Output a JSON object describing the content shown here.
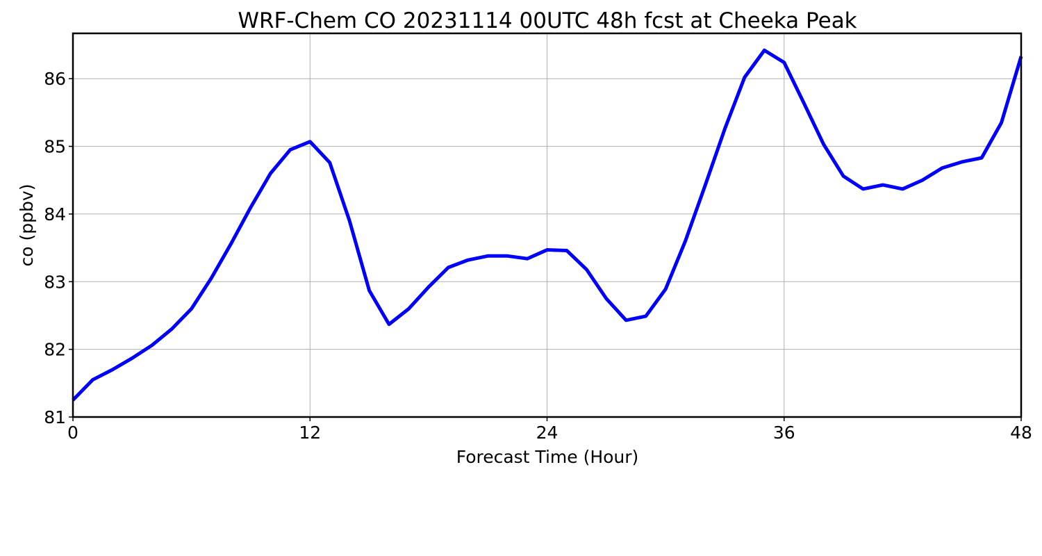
{
  "chart_data": {
    "type": "line",
    "title": "WRF-Chem CO  20231114 00UTC 48h fcst at Cheeka Peak",
    "xlabel": "Forecast Time (Hour)",
    "ylabel": "co  (ppbv)",
    "xlim": [
      0,
      48
    ],
    "ylim": [
      81,
      86.67
    ],
    "xticks": [
      0,
      12,
      24,
      36,
      48
    ],
    "yticks": [
      81,
      82,
      83,
      84,
      85,
      86
    ],
    "grid": true,
    "x": [
      0,
      1,
      2,
      3,
      4,
      5,
      6,
      7,
      8,
      9,
      10,
      11,
      12,
      13,
      14,
      15,
      16,
      17,
      18,
      19,
      20,
      21,
      22,
      23,
      24,
      25,
      26,
      27,
      28,
      29,
      30,
      31,
      32,
      33,
      34,
      35,
      36,
      37,
      38,
      39,
      40,
      41,
      42,
      43,
      44,
      45,
      46,
      47,
      48
    ],
    "series": [
      {
        "color": "#0000ff",
        "values": [
          81.25,
          81.55,
          81.7,
          81.87,
          82.06,
          82.3,
          82.6,
          83.05,
          83.56,
          84.1,
          84.6,
          84.95,
          85.07,
          84.76,
          83.9,
          82.87,
          82.37,
          82.6,
          82.92,
          83.21,
          83.32,
          83.38,
          83.38,
          83.34,
          83.47,
          83.46,
          83.18,
          82.75,
          82.43,
          82.49,
          82.89,
          83.6,
          84.42,
          85.26,
          86.02,
          86.42,
          86.24,
          85.64,
          85.03,
          84.56,
          84.37,
          84.43,
          84.37,
          84.5,
          84.68,
          84.77,
          84.83,
          85.35,
          86.33
        ]
      }
    ]
  }
}
